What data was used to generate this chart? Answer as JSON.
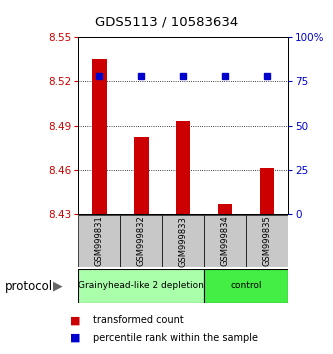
{
  "title": "GDS5113 / 10583634",
  "samples": [
    "GSM999831",
    "GSM999832",
    "GSM999833",
    "GSM999834",
    "GSM999835"
  ],
  "red_values": [
    8.535,
    8.482,
    8.493,
    8.437,
    8.461
  ],
  "blue_values": [
    78,
    78,
    78,
    78,
    78
  ],
  "ylim_left": [
    8.43,
    8.55
  ],
  "ylim_right": [
    0,
    100
  ],
  "yticks_left": [
    8.43,
    8.46,
    8.49,
    8.52,
    8.55
  ],
  "yticks_right": [
    0,
    25,
    50,
    75,
    100
  ],
  "ytick_labels_right": [
    "0",
    "25",
    "50",
    "75",
    "100%"
  ],
  "hlines": [
    8.46,
    8.49,
    8.52
  ],
  "groups": [
    {
      "label": "Grainyhead-like 2 depletion",
      "indices": [
        0,
        1,
        2
      ],
      "color": "#aaffaa"
    },
    {
      "label": "control",
      "indices": [
        3,
        4
      ],
      "color": "#44ee44"
    }
  ],
  "protocol_label": "protocol",
  "legend_red": "transformed count",
  "legend_blue": "percentile rank within the sample",
  "bar_color": "#cc0000",
  "dot_color": "#0000cc",
  "background_color": "#ffffff",
  "plot_bg": "#ffffff",
  "tick_color_left": "#cc0000",
  "tick_color_right": "#0000cc",
  "label_box_color": "#c8c8c8",
  "group1_color": "#b8f0b8",
  "group2_color": "#44dd44"
}
